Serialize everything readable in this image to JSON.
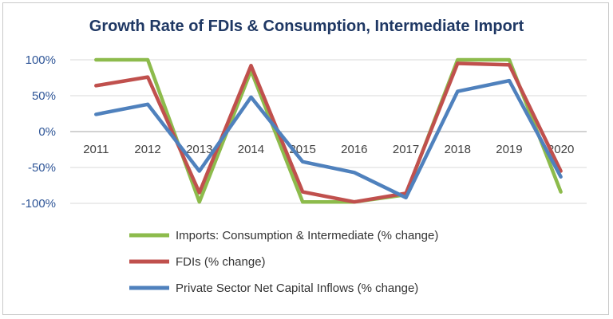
{
  "chart_data": {
    "type": "line",
    "title": "Growth Rate of FDIs & Consumption, Intermediate Import",
    "xlabel": "",
    "ylabel": "",
    "categories": [
      "2011",
      "2012",
      "2013",
      "2014",
      "2015",
      "2016",
      "2017",
      "2018",
      "2019",
      "2020"
    ],
    "ylim": [
      -1.0,
      1.0
    ],
    "yticks": [
      1.0,
      0.5,
      0,
      -0.5,
      -1.0
    ],
    "ytick_labels": [
      "100%",
      "50%",
      "0%",
      "-50%",
      "-100%"
    ],
    "grid": true,
    "legend_position": "bottom",
    "series": [
      {
        "name": "Imports: Consumption & Intermediate (% change)",
        "color": "#8dbb4c",
        "values": [
          1.0,
          1.0,
          -0.98,
          0.85,
          -0.98,
          -0.98,
          -0.88,
          1.0,
          1.0,
          -0.84
        ]
      },
      {
        "name": "FDIs (% change)",
        "color": "#c0504d",
        "values": [
          0.64,
          0.76,
          -0.85,
          0.92,
          -0.84,
          -0.98,
          -0.86,
          0.95,
          0.93,
          -0.55
        ]
      },
      {
        "name": "Private Sector Net Capital Inflows (% change)",
        "color": "#4f81bd",
        "values": [
          0.24,
          0.38,
          -0.55,
          0.48,
          -0.42,
          -0.57,
          -0.92,
          0.56,
          0.71,
          -0.63
        ]
      }
    ]
  }
}
